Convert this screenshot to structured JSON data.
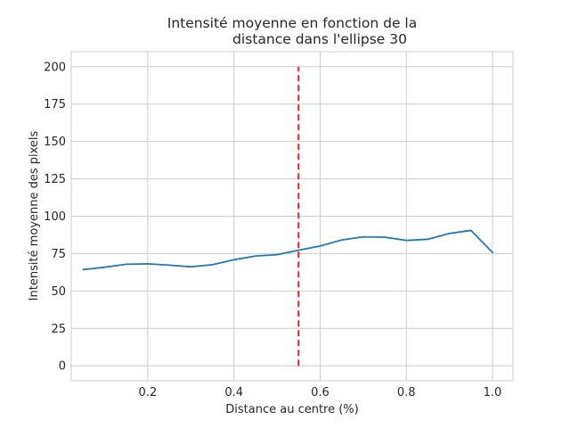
{
  "chart_data": {
    "type": "line",
    "title_lines": [
      "Intensité moyenne en fonction de la",
      "distance dans l'ellipse 30"
    ],
    "xlabel": "Distance au centre (%)",
    "ylabel": "Intensité moyenne des pixels",
    "xlim": [
      0.0225,
      1.0475
    ],
    "ylim": [
      -10,
      210
    ],
    "xticks": [
      0.2,
      0.4,
      0.6,
      0.8,
      1.0
    ],
    "xtick_labels": [
      "0.2",
      "0.4",
      "0.6",
      "0.8",
      "1.0"
    ],
    "yticks": [
      0,
      25,
      50,
      75,
      100,
      125,
      150,
      175,
      200
    ],
    "ytick_labels": [
      "0",
      "25",
      "50",
      "75",
      "100",
      "125",
      "150",
      "175",
      "200"
    ],
    "grid": true,
    "series": [
      {
        "color": "#1f77b4",
        "x": [
          0.05,
          0.1,
          0.15,
          0.2,
          0.25,
          0.3,
          0.35,
          0.4,
          0.45,
          0.5,
          0.55,
          0.6,
          0.65,
          0.7,
          0.75,
          0.8,
          0.85,
          0.9,
          0.95,
          1.0
        ],
        "y": [
          64.3,
          65.9,
          67.9,
          68.2,
          67.3,
          66.2,
          67.6,
          70.9,
          73.4,
          74.3,
          77.3,
          80.1,
          84.1,
          86.2,
          86.0,
          83.8,
          84.6,
          88.5,
          90.5,
          75.8
        ]
      }
    ],
    "vline": {
      "x": 0.55,
      "y_range": [
        0,
        200
      ],
      "color": "#d62728",
      "style": "dashed"
    }
  }
}
